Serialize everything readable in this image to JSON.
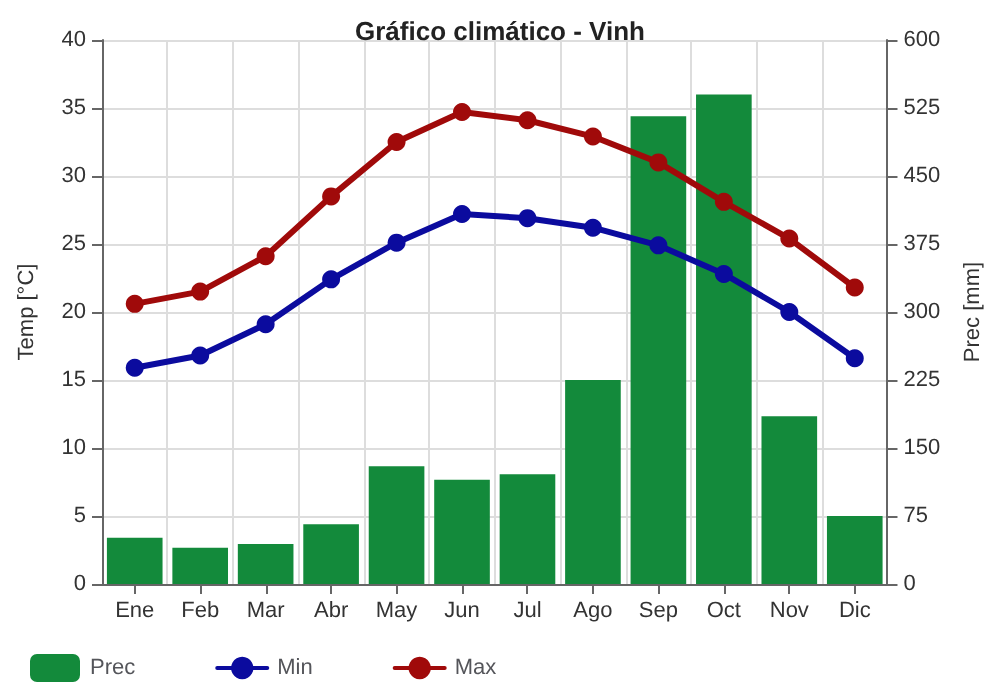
{
  "chart_data": {
    "type": "bar",
    "title": "Gráfico climático - Vinh",
    "ylabel": "Temp [°C]",
    "y2label": "Prec [mm]",
    "categories": [
      "Ene",
      "Feb",
      "Mar",
      "Abr",
      "May",
      "Jun",
      "Jul",
      "Ago",
      "Sep",
      "Oct",
      "Nov",
      "Dic"
    ],
    "series": [
      {
        "name": "Prec",
        "axis": "y2",
        "color": "#138a3b",
        "values": [
          51,
          40,
          44,
          66,
          130,
          115,
          121,
          225,
          516,
          540,
          185,
          75
        ]
      },
      {
        "name": "Min",
        "type": "line",
        "color": "#0b0b9e",
        "values": [
          15.9,
          16.8,
          19.1,
          22.4,
          25.1,
          27.2,
          26.9,
          26.2,
          24.9,
          22.8,
          20.0,
          16.6
        ]
      },
      {
        "name": "Max",
        "type": "line",
        "color": "#a00a0a",
        "values": [
          20.6,
          21.5,
          24.1,
          28.5,
          32.5,
          34.7,
          34.1,
          32.9,
          31.0,
          28.1,
          25.4,
          21.8
        ]
      }
    ],
    "ylim": [
      0,
      40
    ],
    "yticks": [
      0,
      5,
      10,
      15,
      20,
      25,
      30,
      35,
      40
    ],
    "y2lim": [
      0,
      600
    ],
    "y2ticks": [
      0,
      75,
      150,
      225,
      300,
      375,
      450,
      525,
      600
    ],
    "grid": true,
    "legend": "bottom",
    "marker": "circle",
    "line_style": "solid"
  }
}
